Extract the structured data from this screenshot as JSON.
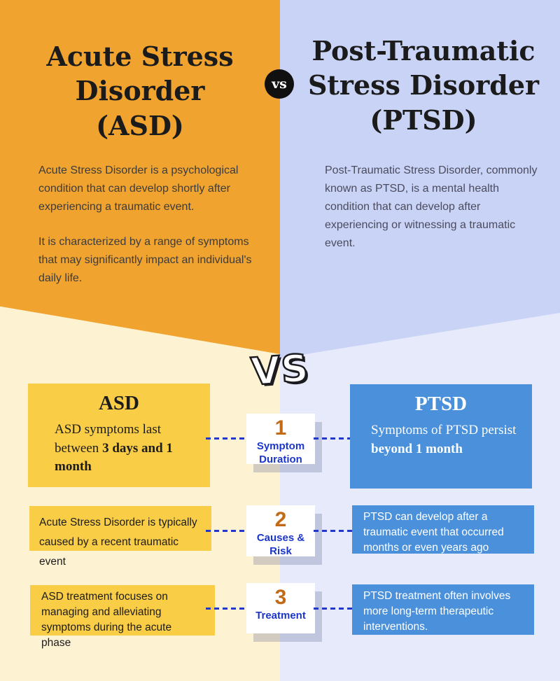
{
  "header": {
    "left": {
      "title_lines": [
        "Acute Stress",
        "Disorder",
        "(ASD)"
      ],
      "para1": "Acute Stress Disorder is a psychological condition that can develop shortly after experiencing a traumatic event.",
      "para2": "It is characterized by a range of symptoms that may significantly impact an individual's daily life."
    },
    "vs_badge": "vs",
    "right": {
      "title_lines": [
        "Post-Traumatic",
        "Stress Disorder",
        "(PTSD)"
      ],
      "para1": "Post-Traumatic Stress Disorder, commonly known as PTSD, is a mental health condition that can develop after experiencing or witnessing a traumatic event."
    }
  },
  "divider": {
    "vs": "VS"
  },
  "rows": [
    {
      "asd_title": "ASD",
      "asd_text": "ASD symptoms last between ",
      "asd_bold": "3 days and 1 month",
      "number": "1",
      "label": "Symptom Duration",
      "ptsd_title": "PTSD",
      "ptsd_text": "Symptoms of PTSD persist ",
      "ptsd_bold": "beyond 1 month"
    },
    {
      "asd_text": "Acute Stress Disorder is typically caused by a recent traumatic event",
      "number": "2",
      "label": "Causes & Risk",
      "ptsd_text": "PTSD can develop after a traumatic event that occurred months or even years ago"
    },
    {
      "asd_text": "ASD treatment focuses on managing and alleviating symptoms during the acute phase",
      "number": "3",
      "label": "Treatment",
      "ptsd_text": "PTSD treatment often involves more long-term therapeutic interventions."
    }
  ],
  "colors": {
    "orange": "#F0A32F",
    "lavender": "#C9D3F6",
    "cream": "#FDF2D2",
    "light_lavender": "#E6EAFB",
    "box_yellow": "#FACD46",
    "box_blue": "#4A90DA",
    "number_orange": "#C26A15",
    "label_blue": "#1C36CA",
    "dash_blue": "#2338C6",
    "badge_black": "#101010"
  }
}
